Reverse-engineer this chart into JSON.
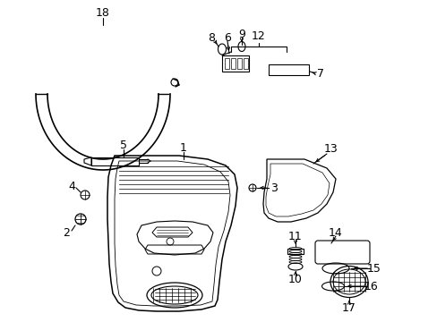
{
  "bg_color": "#ffffff",
  "lc": "#000000",
  "fig_w": 4.89,
  "fig_h": 3.6,
  "dpi": 100,
  "xmax": 489,
  "ymax": 360
}
